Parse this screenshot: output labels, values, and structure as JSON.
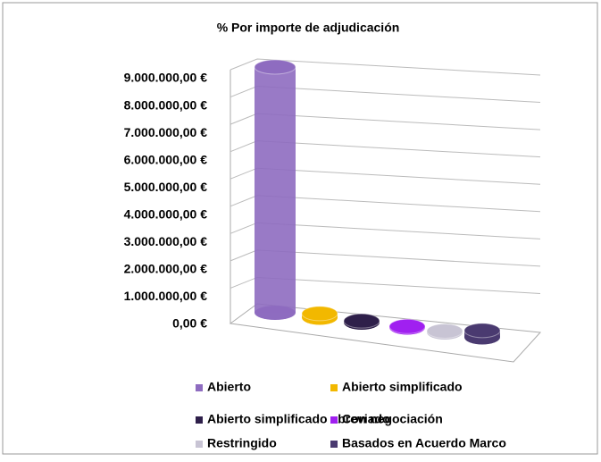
{
  "chart_data": {
    "type": "bar",
    "title": "% Por importe de adjudicación",
    "categories": [
      null
    ],
    "series": [
      {
        "name": "Abierto",
        "color": "#8e6cc0",
        "values": [
          9000000
        ]
      },
      {
        "name": "Abierto simplificado",
        "color": "#f2b800",
        "values": [
          150000
        ]
      },
      {
        "name": "Abierto simplificado abreviado",
        "color": "#2e1f4a",
        "values": [
          60000
        ]
      },
      {
        "name": "Con negociación",
        "color": "#a020f0",
        "values": [
          40000
        ]
      },
      {
        "name": "Restringido",
        "color": "#c8c4d4",
        "values": [
          50000
        ]
      },
      {
        "name": "Basados en Acuerdo Marco",
        "color": "#4a3a70",
        "values": [
          250000
        ]
      }
    ],
    "ylim": [
      0,
      9000000
    ],
    "yticks": [
      {
        "value": 0,
        "label": "0,00 €"
      },
      {
        "value": 1000000,
        "label": "1.000.000,00 €"
      },
      {
        "value": 2000000,
        "label": "2.000.000,00 €"
      },
      {
        "value": 3000000,
        "label": "3.000.000,00 €"
      },
      {
        "value": 4000000,
        "label": "4.000.000,00 €"
      },
      {
        "value": 5000000,
        "label": "5.000.000,00 €"
      },
      {
        "value": 6000000,
        "label": "6.000.000,00 €"
      },
      {
        "value": 7000000,
        "label": "7.000.000,00 €"
      },
      {
        "value": 8000000,
        "label": "8.000.000,00 €"
      },
      {
        "value": 9000000,
        "label": "9.000.000,00 €"
      }
    ],
    "grid": true,
    "legend": "bottom"
  }
}
